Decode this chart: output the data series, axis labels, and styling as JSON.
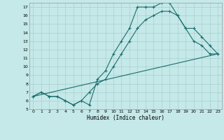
{
  "xlabel": "Humidex (Indice chaleur)",
  "bg_color": "#c5e8e8",
  "line_color": "#1a6e6e",
  "grid_color": "#aacece",
  "xlim": [
    -0.5,
    23.5
  ],
  "ylim": [
    5,
    17.5
  ],
  "xticks": [
    0,
    1,
    2,
    3,
    4,
    5,
    6,
    7,
    8,
    9,
    10,
    11,
    12,
    13,
    14,
    15,
    16,
    17,
    18,
    19,
    20,
    21,
    22,
    23
  ],
  "yticks": [
    5,
    6,
    7,
    8,
    9,
    10,
    11,
    12,
    13,
    14,
    15,
    16,
    17
  ],
  "line1_x": [
    0,
    1,
    2,
    3,
    4,
    5,
    6,
    7,
    8,
    9,
    10,
    11,
    12,
    13,
    14,
    15,
    16,
    17,
    18,
    19,
    20,
    21,
    22,
    23
  ],
  "line1_y": [
    6.5,
    7.0,
    6.5,
    6.5,
    6.0,
    5.5,
    6.0,
    5.5,
    8.5,
    9.5,
    11.5,
    13.0,
    14.5,
    17.0,
    17.0,
    17.0,
    17.5,
    17.5,
    16.0,
    14.5,
    13.0,
    12.5,
    11.5,
    11.5
  ],
  "line2_x": [
    0,
    1,
    2,
    3,
    4,
    5,
    6,
    7,
    8,
    9,
    10,
    11,
    12,
    13,
    14,
    15,
    16,
    17,
    18,
    19,
    20,
    21,
    22,
    23
  ],
  "line2_y": [
    6.5,
    7.0,
    6.5,
    6.5,
    6.0,
    5.5,
    6.0,
    7.0,
    8.0,
    8.5,
    10.0,
    11.5,
    13.0,
    14.5,
    15.5,
    16.0,
    16.5,
    16.5,
    16.0,
    14.5,
    14.5,
    13.5,
    12.5,
    11.5
  ],
  "line3_x": [
    0,
    23
  ],
  "line3_y": [
    6.5,
    11.5
  ]
}
